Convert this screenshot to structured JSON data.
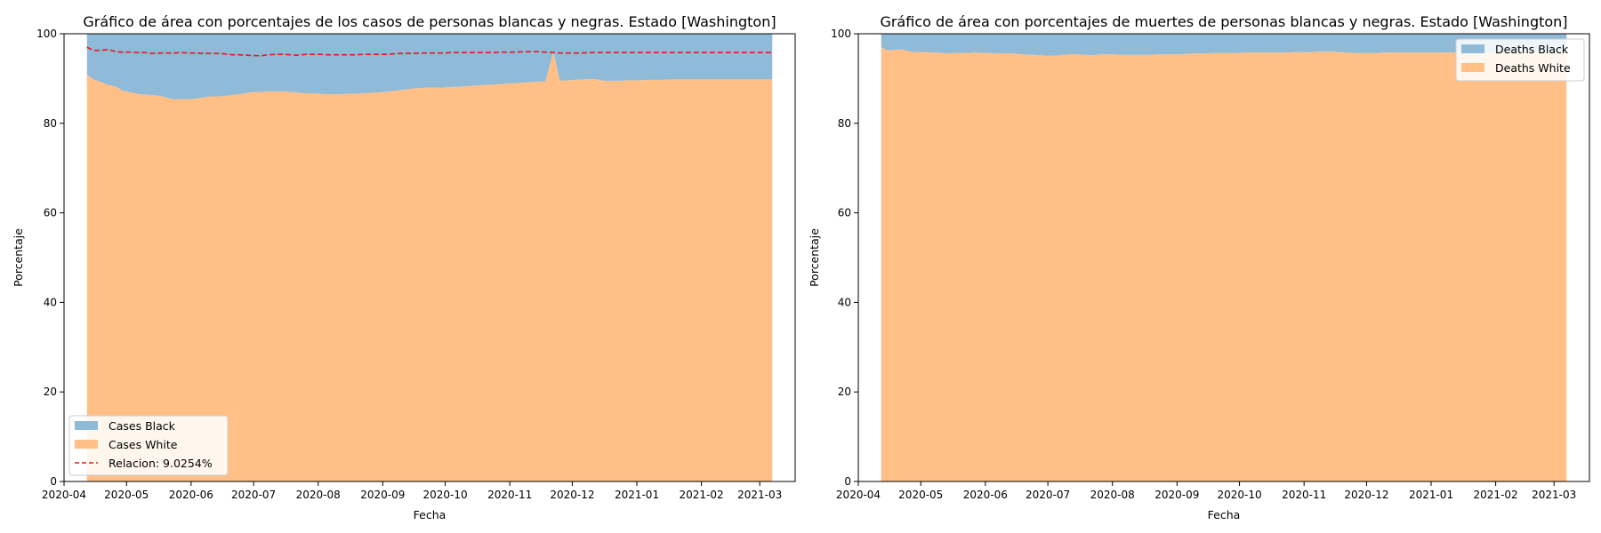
{
  "chart_data": [
    {
      "type": "area",
      "title": "Gráfico de área con porcentajes de los casos de personas blancas y negras. Estado [Washington]",
      "xlabel": "Fecha",
      "ylabel": "Porcentaje",
      "xlim": [
        "2020-04-01",
        "2021-03-18"
      ],
      "ylim": [
        0,
        100
      ],
      "xticks": [
        "2020-04",
        "2020-05",
        "2020-06",
        "2020-07",
        "2020-08",
        "2020-09",
        "2020-10",
        "2020-11",
        "2020-12",
        "2021-01",
        "2021-02",
        "2021-03"
      ],
      "yticks": [
        0,
        20,
        40,
        60,
        80,
        100
      ],
      "grid": false,
      "legend_placement": "lower-left",
      "x": [
        "2020-04-12",
        "2020-04-15",
        "2020-04-19",
        "2020-04-22",
        "2020-04-26",
        "2020-04-29",
        "2020-05-03",
        "2020-05-06",
        "2020-05-10",
        "2020-05-13",
        "2020-05-17",
        "2020-05-20",
        "2020-05-24",
        "2020-05-27",
        "2020-05-31",
        "2020-06-03",
        "2020-06-07",
        "2020-06-10",
        "2020-06-14",
        "2020-06-17",
        "2020-06-21",
        "2020-06-24",
        "2020-06-28",
        "2020-07-01",
        "2020-07-05",
        "2020-07-08",
        "2020-07-12",
        "2020-07-15",
        "2020-07-19",
        "2020-07-22",
        "2020-07-26",
        "2020-07-29",
        "2020-08-02",
        "2020-08-05",
        "2020-08-09",
        "2020-08-12",
        "2020-08-16",
        "2020-08-19",
        "2020-08-23",
        "2020-08-26",
        "2020-08-30",
        "2020-09-02",
        "2020-09-06",
        "2020-09-09",
        "2020-09-13",
        "2020-09-16",
        "2020-09-20",
        "2020-09-23",
        "2020-09-27",
        "2020-09-30",
        "2020-10-04",
        "2020-10-07",
        "2020-10-11",
        "2020-10-14",
        "2020-10-18",
        "2020-10-21",
        "2020-10-25",
        "2020-10-28",
        "2020-11-01",
        "2020-11-04",
        "2020-11-08",
        "2020-11-11",
        "2020-11-15",
        "2020-11-18",
        "2020-11-22",
        "2020-11-25",
        "2020-11-29",
        "2020-12-02",
        "2020-12-06",
        "2020-12-09",
        "2020-12-13",
        "2020-12-16",
        "2020-12-20",
        "2020-12-23",
        "2020-12-27",
        "2020-12-30",
        "2021-01-03",
        "2021-01-06",
        "2021-01-10",
        "2021-01-13",
        "2021-01-17",
        "2021-01-20",
        "2021-01-24",
        "2021-01-27",
        "2021-01-31",
        "2021-02-03",
        "2021-02-07",
        "2021-02-10",
        "2021-02-14",
        "2021-02-17",
        "2021-02-21",
        "2021-02-24",
        "2021-02-28",
        "2021-03-03",
        "2021-03-07"
      ],
      "series": [
        {
          "name": "Cases White",
          "color": "#ffbf86",
          "values": [
            91.0,
            89.8,
            89.2,
            88.6,
            88.2,
            87.3,
            86.9,
            86.6,
            86.4,
            86.3,
            86.1,
            85.8,
            85.3,
            85.4,
            85.4,
            85.5,
            85.8,
            86.0,
            86.0,
            86.1,
            86.3,
            86.5,
            86.8,
            87.0,
            87.0,
            87.1,
            87.1,
            87.1,
            87.0,
            86.9,
            86.7,
            86.7,
            86.6,
            86.5,
            86.5,
            86.5,
            86.6,
            86.6,
            86.7,
            86.8,
            86.9,
            87.0,
            87.2,
            87.4,
            87.6,
            87.8,
            87.9,
            88.0,
            88.0,
            88.0,
            88.1,
            88.2,
            88.3,
            88.4,
            88.5,
            88.6,
            88.7,
            88.8,
            88.9,
            89.0,
            89.1,
            89.2,
            89.3,
            89.3,
            96.0,
            89.5,
            89.6,
            89.7,
            89.8,
            89.9,
            89.8,
            89.5,
            89.5,
            89.5,
            89.6,
            89.6,
            89.6,
            89.7,
            89.7,
            89.7,
            89.8,
            89.8,
            89.8,
            89.8,
            89.8,
            89.8,
            89.8,
            89.8,
            89.8,
            89.8,
            89.8,
            89.8,
            89.8,
            89.8,
            89.8
          ]
        },
        {
          "name": "Cases Black",
          "color": "#8fbad8",
          "values": [
            9.0,
            10.2,
            10.8,
            11.4,
            11.8,
            12.7,
            13.1,
            13.4,
            13.6,
            13.7,
            13.9,
            14.2,
            14.7,
            14.6,
            14.6,
            14.5,
            14.2,
            14.0,
            14.0,
            13.9,
            13.7,
            13.5,
            13.2,
            13.0,
            13.0,
            12.9,
            12.9,
            12.9,
            13.0,
            13.1,
            13.3,
            13.3,
            13.4,
            13.5,
            13.5,
            13.5,
            13.4,
            13.4,
            13.3,
            13.2,
            13.1,
            13.0,
            12.8,
            12.6,
            12.4,
            12.2,
            12.1,
            12.0,
            12.0,
            12.0,
            11.9,
            11.8,
            11.7,
            11.6,
            11.5,
            11.4,
            11.3,
            11.2,
            11.1,
            11.0,
            10.9,
            10.8,
            10.7,
            10.7,
            4.0,
            10.5,
            10.4,
            10.3,
            10.2,
            10.1,
            10.2,
            10.5,
            10.5,
            10.5,
            10.4,
            10.4,
            10.4,
            10.3,
            10.3,
            10.3,
            10.2,
            10.2,
            10.2,
            10.2,
            10.2,
            10.2,
            10.2,
            10.2,
            10.2,
            10.2,
            10.2,
            10.2,
            10.2,
            10.2,
            10.2
          ]
        }
      ],
      "ratio_line": {
        "name": "Relacion: 9.0254%",
        "color": "#e41a1c",
        "style": "dashed",
        "values": [
          97.0,
          96.3,
          96.3,
          96.5,
          96.0,
          95.9,
          95.9,
          95.8,
          95.8,
          95.6,
          95.7,
          95.7,
          95.7,
          95.8,
          95.7,
          95.7,
          95.6,
          95.6,
          95.6,
          95.5,
          95.3,
          95.3,
          95.2,
          95.1,
          95.1,
          95.3,
          95.4,
          95.4,
          95.3,
          95.2,
          95.4,
          95.4,
          95.4,
          95.3,
          95.3,
          95.3,
          95.3,
          95.3,
          95.4,
          95.4,
          95.4,
          95.4,
          95.5,
          95.6,
          95.6,
          95.6,
          95.7,
          95.7,
          95.7,
          95.7,
          95.8,
          95.8,
          95.8,
          95.8,
          95.8,
          95.8,
          95.8,
          95.9,
          95.9,
          95.9,
          96.0,
          96.0,
          96.0,
          95.9,
          95.8,
          95.7,
          95.7,
          95.7,
          95.7,
          95.8,
          95.8,
          95.8,
          95.8,
          95.8,
          95.8,
          95.8,
          95.8,
          95.8,
          95.8,
          95.8,
          95.8,
          95.8,
          95.8,
          95.8,
          95.8,
          95.8,
          95.8,
          95.8,
          95.8,
          95.8,
          95.8,
          95.8,
          95.8,
          95.8,
          95.8
        ]
      }
    },
    {
      "type": "area",
      "title": "Gráfico de área con porcentajes de muertes de personas blancas y negras. Estado [Washington]",
      "xlabel": "Fecha",
      "ylabel": "Porcentaje",
      "xlim": [
        "2020-04-01",
        "2021-03-18"
      ],
      "ylim": [
        0,
        100
      ],
      "xticks": [
        "2020-04",
        "2020-05",
        "2020-06",
        "2020-07",
        "2020-08",
        "2020-09",
        "2020-10",
        "2020-11",
        "2020-12",
        "2021-01",
        "2021-02",
        "2021-03"
      ],
      "yticks": [
        0,
        20,
        40,
        60,
        80,
        100
      ],
      "grid": false,
      "legend_placement": "upper-right",
      "x": [
        "2020-04-12",
        "2020-04-15",
        "2020-04-19",
        "2020-04-22",
        "2020-04-26",
        "2020-04-29",
        "2020-05-03",
        "2020-05-06",
        "2020-05-10",
        "2020-05-13",
        "2020-05-17",
        "2020-05-20",
        "2020-05-24",
        "2020-05-27",
        "2020-05-31",
        "2020-06-03",
        "2020-06-07",
        "2020-06-10",
        "2020-06-14",
        "2020-06-17",
        "2020-06-21",
        "2020-06-24",
        "2020-06-28",
        "2020-07-01",
        "2020-07-05",
        "2020-07-08",
        "2020-07-12",
        "2020-07-15",
        "2020-07-19",
        "2020-07-22",
        "2020-07-26",
        "2020-07-29",
        "2020-08-02",
        "2020-08-05",
        "2020-08-09",
        "2020-08-12",
        "2020-08-16",
        "2020-08-19",
        "2020-08-23",
        "2020-08-26",
        "2020-08-30",
        "2020-09-02",
        "2020-09-06",
        "2020-09-09",
        "2020-09-13",
        "2020-09-16",
        "2020-09-20",
        "2020-09-23",
        "2020-09-27",
        "2020-09-30",
        "2020-10-04",
        "2020-10-07",
        "2020-10-11",
        "2020-10-14",
        "2020-10-18",
        "2020-10-21",
        "2020-10-25",
        "2020-10-28",
        "2020-11-01",
        "2020-11-04",
        "2020-11-08",
        "2020-11-11",
        "2020-11-15",
        "2020-11-18",
        "2020-11-22",
        "2020-11-25",
        "2020-11-29",
        "2020-12-02",
        "2020-12-06",
        "2020-12-09",
        "2020-12-13",
        "2020-12-16",
        "2020-12-20",
        "2020-12-23",
        "2020-12-27",
        "2020-12-30",
        "2021-01-03",
        "2021-01-06",
        "2021-01-10",
        "2021-01-13",
        "2021-01-17",
        "2021-01-20",
        "2021-01-24",
        "2021-01-27",
        "2021-01-31",
        "2021-02-03",
        "2021-02-07",
        "2021-02-10",
        "2021-02-14",
        "2021-02-17",
        "2021-02-21",
        "2021-02-24",
        "2021-02-28",
        "2021-03-03",
        "2021-03-07"
      ],
      "series": [
        {
          "name": "Deaths White",
          "color": "#ffbf86",
          "values": [
            97.0,
            96.3,
            96.4,
            96.5,
            96.0,
            95.9,
            95.9,
            95.8,
            95.8,
            95.6,
            95.7,
            95.7,
            95.7,
            95.8,
            95.7,
            95.7,
            95.6,
            95.6,
            95.6,
            95.5,
            95.3,
            95.3,
            95.2,
            95.1,
            95.1,
            95.3,
            95.4,
            95.4,
            95.3,
            95.2,
            95.4,
            95.4,
            95.4,
            95.3,
            95.3,
            95.3,
            95.3,
            95.3,
            95.4,
            95.4,
            95.4,
            95.4,
            95.5,
            95.6,
            95.6,
            95.6,
            95.7,
            95.7,
            95.7,
            95.7,
            95.8,
            95.8,
            95.8,
            95.8,
            95.8,
            95.8,
            95.8,
            95.9,
            95.9,
            95.9,
            96.0,
            96.0,
            96.0,
            95.9,
            95.8,
            95.7,
            95.7,
            95.7,
            95.7,
            95.8,
            95.8,
            95.8,
            95.8,
            95.8,
            95.8,
            95.8,
            95.8,
            95.8,
            95.8,
            95.8,
            95.8,
            95.8,
            95.8,
            95.8,
            95.8,
            95.8,
            95.8,
            95.8,
            95.8,
            95.8,
            95.8,
            95.8,
            95.8,
            95.8,
            95.8
          ]
        },
        {
          "name": "Deaths Black",
          "color": "#8fbad8",
          "values": [
            3.0,
            3.7,
            3.6,
            3.5,
            4.0,
            4.1,
            4.1,
            4.2,
            4.2,
            4.4,
            4.3,
            4.3,
            4.3,
            4.2,
            4.3,
            4.3,
            4.4,
            4.4,
            4.4,
            4.5,
            4.7,
            4.7,
            4.8,
            4.9,
            4.9,
            4.7,
            4.6,
            4.6,
            4.7,
            4.8,
            4.6,
            4.6,
            4.6,
            4.7,
            4.7,
            4.7,
            4.7,
            4.7,
            4.6,
            4.6,
            4.6,
            4.6,
            4.5,
            4.4,
            4.4,
            4.4,
            4.3,
            4.3,
            4.3,
            4.3,
            4.2,
            4.2,
            4.2,
            4.2,
            4.2,
            4.2,
            4.2,
            4.1,
            4.1,
            4.1,
            4.0,
            4.0,
            4.0,
            4.1,
            4.2,
            4.3,
            4.3,
            4.3,
            4.3,
            4.2,
            4.2,
            4.2,
            4.2,
            4.2,
            4.2,
            4.2,
            4.2,
            4.2,
            4.2,
            4.2,
            4.2,
            4.2,
            4.2,
            4.2,
            4.2,
            4.2,
            4.2,
            4.2,
            4.2,
            4.2,
            4.2,
            4.2,
            4.2,
            4.2,
            4.2
          ]
        }
      ]
    }
  ]
}
